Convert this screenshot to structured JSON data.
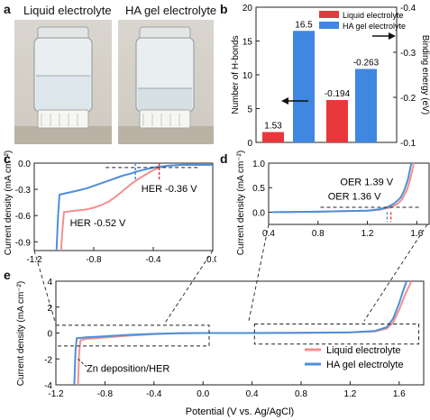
{
  "panels": {
    "a": {
      "letter": "a",
      "labels": [
        "Liquid electrolyte",
        "HA gel electrolyte"
      ]
    },
    "b": {
      "letter": "b"
    },
    "c": {
      "letter": "c"
    },
    "d": {
      "letter": "d"
    },
    "e": {
      "letter": "e"
    }
  },
  "colors": {
    "liquid": "#f29090",
    "gel": "#4d8fd9",
    "bar_liquid": "#e8383c",
    "bar_gel": "#3f87e0"
  },
  "chart_data": [
    {
      "id": "b",
      "type": "bar",
      "categories": [
        "Number of H-bonds",
        "Binding energy"
      ],
      "series": [
        {
          "name": "Liquid electrolyte",
          "values": [
            1.53,
            -0.194
          ]
        },
        {
          "name": "HA gel electrolyte",
          "values": [
            16.5,
            -0.263
          ]
        }
      ],
      "data_labels": [
        "1.53",
        "16.5",
        "-0.194",
        "-0.263"
      ],
      "ylabel_left": "Number of H-bonds",
      "ylabel_right": "Binding energy (eV)",
      "ylim_left": [
        0,
        20
      ],
      "ylim_right": [
        -0.1,
        -0.4
      ],
      "yticks_left": [
        "0",
        "5",
        "10",
        "15",
        "20"
      ],
      "yticks_right": [
        "-0.1",
        "-0.2",
        "-0.3",
        "-0.4"
      ],
      "legend": "top-center"
    },
    {
      "id": "c",
      "type": "line",
      "ylabel": "Current density (mA cm⁻²)",
      "xlim": [
        -1.2,
        0.0
      ],
      "ylim": [
        -1.0,
        0.0
      ],
      "xticks": [
        "-1.2",
        "-0.8",
        "-0.4",
        "0.0"
      ],
      "yticks": [
        "0.0",
        "-0.3",
        "-0.6",
        "-0.9"
      ],
      "annotations": [
        "HER  -0.52 V",
        "HER  -0.36 V"
      ],
      "series": [
        {
          "name": "Liquid electrolyte",
          "x": [
            -1.02,
            -1.01,
            -1.0,
            -0.95,
            -0.9,
            -0.85,
            -0.8,
            -0.75,
            -0.7,
            -0.65,
            -0.6,
            -0.55,
            -0.5,
            -0.45,
            -0.4,
            -0.36,
            -0.3,
            -0.2,
            -0.1,
            0.0
          ],
          "y": [
            -1.0,
            -0.75,
            -0.56,
            -0.55,
            -0.54,
            -0.53,
            -0.51,
            -0.48,
            -0.44,
            -0.38,
            -0.31,
            -0.24,
            -0.18,
            -0.13,
            -0.08,
            -0.05,
            -0.03,
            -0.02,
            -0.02,
            -0.02
          ]
        },
        {
          "name": "HA gel electrolyte",
          "x": [
            -1.05,
            -1.04,
            -1.03,
            -1.0,
            -0.95,
            -0.9,
            -0.85,
            -0.8,
            -0.75,
            -0.7,
            -0.65,
            -0.6,
            -0.55,
            -0.52,
            -0.45,
            -0.4,
            -0.3,
            -0.2,
            -0.1,
            0.0
          ],
          "y": [
            -1.0,
            -0.6,
            -0.36,
            -0.35,
            -0.33,
            -0.31,
            -0.29,
            -0.26,
            -0.23,
            -0.2,
            -0.17,
            -0.14,
            -0.12,
            -0.1,
            -0.07,
            -0.05,
            -0.03,
            -0.02,
            -0.02,
            -0.02
          ]
        }
      ]
    },
    {
      "id": "d",
      "type": "line",
      "ylabel": "Current density (mA cm⁻²)",
      "xlim": [
        0.4,
        1.7
      ],
      "ylim": [
        -0.25,
        1.0
      ],
      "xticks": [
        "0.4",
        "0.8",
        "1.2",
        "1.6"
      ],
      "yticks": [
        "0.0",
        "0.5",
        "1.0"
      ],
      "annotations": [
        "OER  1.39 V",
        "OER  1.36 V"
      ],
      "series": [
        {
          "name": "Liquid electrolyte",
          "x": [
            0.5,
            0.8,
            1.0,
            1.2,
            1.3,
            1.36,
            1.39,
            1.44,
            1.48,
            1.52,
            1.55,
            1.58
          ],
          "y": [
            0.0,
            0.01,
            0.02,
            0.03,
            0.05,
            0.08,
            0.1,
            0.16,
            0.26,
            0.45,
            0.7,
            1.05
          ]
        },
        {
          "name": "HA gel electrolyte",
          "x": [
            0.43,
            0.8,
            1.0,
            1.2,
            1.3,
            1.36,
            1.42,
            1.47,
            1.5,
            1.53,
            1.56
          ],
          "y": [
            0.0,
            0.01,
            0.02,
            0.03,
            0.06,
            0.1,
            0.18,
            0.3,
            0.45,
            0.68,
            1.05
          ]
        }
      ]
    },
    {
      "id": "e",
      "type": "line",
      "xlabel": "Potential (V vs. Ag/AgCl)",
      "ylabel": "Current density (mA cm⁻²)",
      "xlim": [
        -1.2,
        1.8
      ],
      "ylim": [
        -4,
        4
      ],
      "xticks": [
        "-1.2",
        "-0.8",
        "-0.4",
        "0.0",
        "0.4",
        "0.8",
        "1.2",
        "1.6"
      ],
      "yticks": [
        "4",
        "2",
        "0",
        "-2",
        "-4"
      ],
      "annotations": [
        "Zn deposition/HER"
      ],
      "legend": "bottom-right",
      "series": [
        {
          "name": "Liquid electrolyte",
          "x": [
            -1.02,
            -1.01,
            -1.0,
            -0.95,
            -0.8,
            -0.6,
            -0.4,
            -0.2,
            0.0,
            0.4,
            0.8,
            1.2,
            1.4,
            1.5,
            1.55,
            1.6,
            1.65,
            1.7
          ],
          "y": [
            -4.0,
            -1.5,
            -0.55,
            -0.45,
            -0.35,
            -0.2,
            -0.08,
            -0.02,
            0.0,
            0.0,
            0.02,
            0.05,
            0.12,
            0.35,
            0.8,
            1.8,
            3.0,
            4.0
          ]
        },
        {
          "name": "HA gel electrolyte",
          "x": [
            -1.05,
            -1.04,
            -1.03,
            -0.95,
            -0.8,
            -0.6,
            -0.4,
            -0.2,
            0.0,
            0.43,
            0.8,
            1.2,
            1.4,
            1.5,
            1.55,
            1.6,
            1.63,
            1.66
          ],
          "y": [
            -4.0,
            -1.3,
            -0.4,
            -0.33,
            -0.25,
            -0.14,
            -0.06,
            -0.02,
            0.0,
            0.0,
            0.02,
            0.05,
            0.15,
            0.45,
            1.1,
            2.3,
            3.2,
            4.0
          ]
        }
      ]
    }
  ]
}
